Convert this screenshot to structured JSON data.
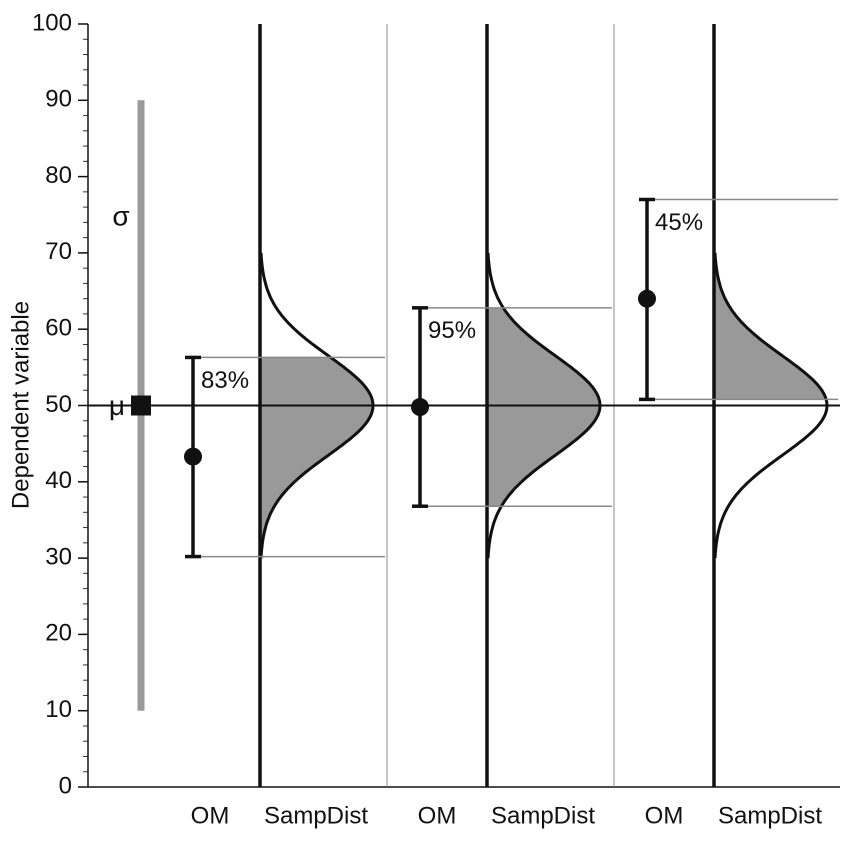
{
  "chart_data": {
    "type": "sampling-distribution",
    "y_label": "Dependent variable",
    "ylim": [
      0,
      100
    ],
    "yticks": [
      0,
      10,
      20,
      30,
      40,
      50,
      60,
      70,
      80,
      90,
      100
    ],
    "minor_tick_step": 2,
    "mu": {
      "label": "μ",
      "value": 50
    },
    "sigma": {
      "label": "σ",
      "range": [
        10,
        90
      ]
    },
    "dist_range": [
      30,
      70
    ],
    "dist_sd": 6.5,
    "panels": [
      {
        "om_label": "OM",
        "dist_label": "SampDist",
        "mean": 43.3,
        "ci": [
          30.2,
          56.3
        ],
        "coverage": {
          "value": 83,
          "label": "83%"
        }
      },
      {
        "om_label": "OM",
        "dist_label": "SampDist",
        "mean": 49.8,
        "ci": [
          36.8,
          62.8
        ],
        "coverage": {
          "value": 95,
          "label": "95%"
        }
      },
      {
        "om_label": "OM",
        "dist_label": "SampDist",
        "mean": 64,
        "ci": [
          50.8,
          77
        ],
        "coverage": {
          "value": 45,
          "label": "45%"
        }
      }
    ]
  }
}
